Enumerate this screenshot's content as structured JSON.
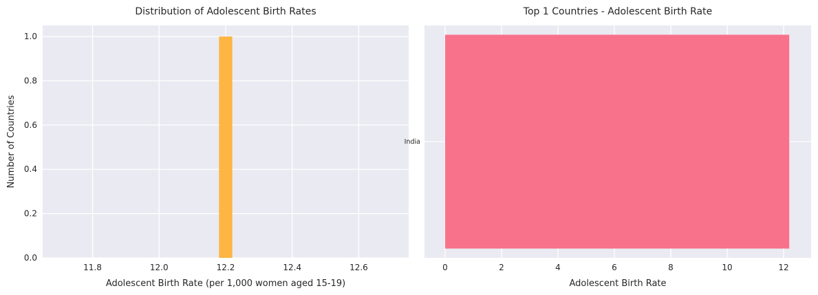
{
  "chart_data": [
    {
      "type": "bar",
      "subtype": "histogram",
      "title": "Distribution of Adolescent Birth Rates",
      "xlabel": "Adolescent Birth Rate (per 1,000 women aged 15-19)",
      "ylabel": "Number of Countries",
      "xlim": [
        11.65,
        12.75
      ],
      "ylim": [
        0,
        1.05
      ],
      "xticks": [
        11.8,
        12.0,
        12.2,
        12.4,
        12.6
      ],
      "xtick_labels": [
        "11.8",
        "12.0",
        "12.2",
        "12.4",
        "12.6"
      ],
      "yticks": [
        0.0,
        0.2,
        0.4,
        0.6,
        0.8,
        1.0
      ],
      "ytick_labels": [
        "0.0",
        "0.2",
        "0.4",
        "0.6",
        "0.8",
        "1.0"
      ],
      "bins": [
        {
          "start": 12.18,
          "end": 12.22,
          "count": 1
        }
      ],
      "color": "#fdb643",
      "grid": true
    },
    {
      "type": "bar",
      "orientation": "horizontal",
      "title": "Top 1 Countries - Adolescent Birth Rate",
      "xlabel": "Adolescent Birth Rate",
      "ylabel": "",
      "categories": [
        "India"
      ],
      "values": [
        12.2
      ],
      "xlim": [
        0,
        12.8
      ],
      "xticks": [
        0,
        2,
        4,
        6,
        8,
        10,
        12
      ],
      "xtick_labels": [
        "0",
        "2",
        "4",
        "6",
        "8",
        "10",
        "12"
      ],
      "color": "#f7728a",
      "grid": true
    }
  ]
}
